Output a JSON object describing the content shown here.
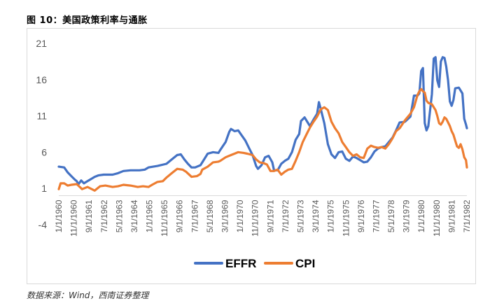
{
  "figure": {
    "title": "图 10：美国政策利率与通胀",
    "source": "数据来源：Wind，西南证券整理"
  },
  "chart_data": {
    "type": "line",
    "title": "",
    "xlabel": "",
    "ylabel": "",
    "ylim": [
      -4,
      21
    ],
    "yticks": [
      21,
      16,
      11,
      6,
      1,
      -4
    ],
    "xticks": [
      "1/1/1960",
      "11/1/1960",
      "9/1/1961",
      "7/1/1962",
      "5/1/1963",
      "3/1/1964",
      "1/1/1965",
      "11/1/1965",
      "9/1/1966",
      "7/1/1967",
      "5/1/1968",
      "3/1/1969",
      "1/1/1970",
      "11/1/1970",
      "9/1/1971",
      "7/1/1972",
      "5/1/1973",
      "3/1/1974",
      "1/1/1975",
      "11/1/1975",
      "9/1/1976",
      "7/1/1977",
      "5/1/1978",
      "3/1/1979",
      "1/1/1980",
      "11/1/1980",
      "9/1/1981",
      "7/1/1982"
    ],
    "xrange": [
      1960.0,
      1982.75
    ],
    "legend_position": "bottom",
    "series": [
      {
        "name": "EFFR",
        "color": "#4472c4",
        "points": [
          [
            1960.0,
            4.0
          ],
          [
            1960.3,
            3.9
          ],
          [
            1960.5,
            3.2
          ],
          [
            1960.7,
            2.7
          ],
          [
            1960.9,
            2.2
          ],
          [
            1961.0,
            2.0
          ],
          [
            1961.1,
            1.6
          ],
          [
            1961.25,
            2.1
          ],
          [
            1961.4,
            1.7
          ],
          [
            1961.6,
            2.0
          ],
          [
            1961.8,
            2.3
          ],
          [
            1962.0,
            2.6
          ],
          [
            1962.2,
            2.8
          ],
          [
            1962.5,
            2.9
          ],
          [
            1962.8,
            2.9
          ],
          [
            1963.0,
            2.9
          ],
          [
            1963.3,
            3.1
          ],
          [
            1963.6,
            3.4
          ],
          [
            1964.0,
            3.5
          ],
          [
            1964.5,
            3.5
          ],
          [
            1964.8,
            3.6
          ],
          [
            1965.0,
            3.9
          ],
          [
            1965.5,
            4.1
          ],
          [
            1966.0,
            4.4
          ],
          [
            1966.3,
            5.0
          ],
          [
            1966.6,
            5.6
          ],
          [
            1966.8,
            5.7
          ],
          [
            1967.0,
            5.0
          ],
          [
            1967.2,
            4.4
          ],
          [
            1967.4,
            3.9
          ],
          [
            1967.6,
            3.9
          ],
          [
            1967.9,
            4.2
          ],
          [
            1968.0,
            4.6
          ],
          [
            1968.3,
            5.8
          ],
          [
            1968.6,
            6.0
          ],
          [
            1968.9,
            5.9
          ],
          [
            1969.0,
            6.3
          ],
          [
            1969.3,
            7.4
          ],
          [
            1969.5,
            8.8
          ],
          [
            1969.6,
            9.2
          ],
          [
            1969.8,
            8.9
          ],
          [
            1970.0,
            9.0
          ],
          [
            1970.2,
            8.3
          ],
          [
            1970.4,
            7.6
          ],
          [
            1970.6,
            6.6
          ],
          [
            1970.8,
            5.6
          ],
          [
            1971.0,
            4.1
          ],
          [
            1971.1,
            3.7
          ],
          [
            1971.3,
            4.2
          ],
          [
            1971.5,
            5.3
          ],
          [
            1971.7,
            5.5
          ],
          [
            1971.9,
            4.6
          ],
          [
            1972.0,
            3.5
          ],
          [
            1972.2,
            3.5
          ],
          [
            1972.4,
            4.4
          ],
          [
            1972.6,
            4.8
          ],
          [
            1972.8,
            5.1
          ],
          [
            1973.0,
            6.0
          ],
          [
            1973.2,
            7.7
          ],
          [
            1973.4,
            8.5
          ],
          [
            1973.5,
            10.3
          ],
          [
            1973.7,
            10.8
          ],
          [
            1973.9,
            10.0
          ],
          [
            1974.0,
            9.6
          ],
          [
            1974.2,
            10.5
          ],
          [
            1974.4,
            11.3
          ],
          [
            1974.5,
            12.9
          ],
          [
            1974.6,
            12.0
          ],
          [
            1974.8,
            10.0
          ],
          [
            1975.0,
            7.1
          ],
          [
            1975.2,
            5.7
          ],
          [
            1975.4,
            5.2
          ],
          [
            1975.6,
            6.0
          ],
          [
            1975.8,
            6.1
          ],
          [
            1976.0,
            5.1
          ],
          [
            1976.2,
            4.8
          ],
          [
            1976.4,
            5.4
          ],
          [
            1976.6,
            5.2
          ],
          [
            1976.8,
            4.9
          ],
          [
            1977.0,
            4.6
          ],
          [
            1977.2,
            4.7
          ],
          [
            1977.4,
            5.3
          ],
          [
            1977.6,
            6.1
          ],
          [
            1977.8,
            6.5
          ],
          [
            1978.0,
            6.7
          ],
          [
            1978.2,
            6.8
          ],
          [
            1978.4,
            7.4
          ],
          [
            1978.6,
            8.0
          ],
          [
            1978.8,
            9.0
          ],
          [
            1979.0,
            10.1
          ],
          [
            1979.3,
            10.2
          ],
          [
            1979.6,
            10.9
          ],
          [
            1979.8,
            13.8
          ],
          [
            1980.0,
            13.8
          ],
          [
            1980.1,
            14.1
          ],
          [
            1980.2,
            17.2
          ],
          [
            1980.3,
            17.6
          ],
          [
            1980.4,
            10.0
          ],
          [
            1980.5,
            9.0
          ],
          [
            1980.6,
            9.6
          ],
          [
            1980.8,
            14.0
          ],
          [
            1980.9,
            18.9
          ],
          [
            1981.0,
            19.1
          ],
          [
            1981.1,
            15.9
          ],
          [
            1981.2,
            15.0
          ],
          [
            1981.3,
            18.5
          ],
          [
            1981.4,
            19.1
          ],
          [
            1981.5,
            19.0
          ],
          [
            1981.6,
            17.8
          ],
          [
            1981.7,
            15.9
          ],
          [
            1981.8,
            13.0
          ],
          [
            1981.9,
            12.4
          ],
          [
            1982.0,
            13.2
          ],
          [
            1982.1,
            14.8
          ],
          [
            1982.3,
            14.9
          ],
          [
            1982.5,
            14.1
          ],
          [
            1982.6,
            10.6
          ],
          [
            1982.7,
            9.8
          ],
          [
            1982.75,
            9.3
          ]
        ]
      },
      {
        "name": "CPI",
        "color": "#ed7d31",
        "points": [
          [
            1960.0,
            0.9
          ],
          [
            1960.1,
            1.7
          ],
          [
            1960.3,
            1.7
          ],
          [
            1960.5,
            1.4
          ],
          [
            1960.7,
            1.5
          ],
          [
            1961.0,
            1.6
          ],
          [
            1961.3,
            0.9
          ],
          [
            1961.6,
            1.2
          ],
          [
            1962.0,
            0.7
          ],
          [
            1962.3,
            1.3
          ],
          [
            1962.6,
            1.4
          ],
          [
            1963.0,
            1.2
          ],
          [
            1963.3,
            1.3
          ],
          [
            1963.6,
            1.5
          ],
          [
            1964.0,
            1.4
          ],
          [
            1964.4,
            1.2
          ],
          [
            1964.7,
            1.3
          ],
          [
            1965.0,
            1.2
          ],
          [
            1965.2,
            1.5
          ],
          [
            1965.5,
            1.9
          ],
          [
            1965.8,
            2.0
          ],
          [
            1966.0,
            2.5
          ],
          [
            1966.3,
            3.1
          ],
          [
            1966.6,
            3.7
          ],
          [
            1966.9,
            3.6
          ],
          [
            1967.1,
            3.3
          ],
          [
            1967.4,
            2.6
          ],
          [
            1967.7,
            2.7
          ],
          [
            1967.9,
            3.0
          ],
          [
            1968.0,
            3.6
          ],
          [
            1968.3,
            4.0
          ],
          [
            1968.6,
            4.6
          ],
          [
            1968.9,
            4.7
          ],
          [
            1969.0,
            4.8
          ],
          [
            1969.3,
            5.3
          ],
          [
            1969.6,
            5.6
          ],
          [
            1969.8,
            5.8
          ],
          [
            1970.0,
            6.0
          ],
          [
            1970.3,
            5.9
          ],
          [
            1970.5,
            5.8
          ],
          [
            1970.8,
            5.6
          ],
          [
            1971.0,
            5.0
          ],
          [
            1971.2,
            4.6
          ],
          [
            1971.4,
            4.5
          ],
          [
            1971.6,
            4.3
          ],
          [
            1971.8,
            3.4
          ],
          [
            1972.0,
            3.4
          ],
          [
            1972.2,
            3.6
          ],
          [
            1972.4,
            2.9
          ],
          [
            1972.6,
            3.3
          ],
          [
            1972.8,
            3.6
          ],
          [
            1973.0,
            3.7
          ],
          [
            1973.2,
            4.8
          ],
          [
            1973.4,
            6.0
          ],
          [
            1973.6,
            7.4
          ],
          [
            1973.8,
            8.4
          ],
          [
            1974.0,
            9.4
          ],
          [
            1974.2,
            10.2
          ],
          [
            1974.4,
            10.9
          ],
          [
            1974.6,
            11.9
          ],
          [
            1974.8,
            12.2
          ],
          [
            1975.0,
            11.8
          ],
          [
            1975.2,
            10.2
          ],
          [
            1975.4,
            9.3
          ],
          [
            1975.6,
            8.6
          ],
          [
            1975.8,
            7.4
          ],
          [
            1976.0,
            6.7
          ],
          [
            1976.2,
            6.0
          ],
          [
            1976.4,
            5.5
          ],
          [
            1976.6,
            5.7
          ],
          [
            1976.8,
            5.3
          ],
          [
            1977.0,
            5.2
          ],
          [
            1977.2,
            6.5
          ],
          [
            1977.4,
            6.9
          ],
          [
            1977.6,
            6.7
          ],
          [
            1977.8,
            6.6
          ],
          [
            1978.0,
            6.7
          ],
          [
            1978.2,
            6.5
          ],
          [
            1978.4,
            7.1
          ],
          [
            1978.6,
            7.9
          ],
          [
            1978.8,
            8.9
          ],
          [
            1979.0,
            9.3
          ],
          [
            1979.3,
            10.4
          ],
          [
            1979.6,
            11.3
          ],
          [
            1979.8,
            12.2
          ],
          [
            1980.0,
            13.9
          ],
          [
            1980.1,
            14.4
          ],
          [
            1980.2,
            14.7
          ],
          [
            1980.3,
            14.4
          ],
          [
            1980.4,
            14.2
          ],
          [
            1980.5,
            13.1
          ],
          [
            1980.6,
            12.8
          ],
          [
            1980.8,
            12.6
          ],
          [
            1981.0,
            11.8
          ],
          [
            1981.1,
            11.0
          ],
          [
            1981.2,
            10.0
          ],
          [
            1981.3,
            9.8
          ],
          [
            1981.4,
            10.2
          ],
          [
            1981.5,
            10.8
          ],
          [
            1981.6,
            10.6
          ],
          [
            1981.7,
            10.1
          ],
          [
            1981.8,
            9.6
          ],
          [
            1981.9,
            8.9
          ],
          [
            1982.0,
            8.4
          ],
          [
            1982.1,
            7.6
          ],
          [
            1982.2,
            6.8
          ],
          [
            1982.3,
            6.6
          ],
          [
            1982.4,
            7.1
          ],
          [
            1982.5,
            6.4
          ],
          [
            1982.6,
            5.3
          ],
          [
            1982.7,
            4.9
          ],
          [
            1982.75,
            3.9
          ]
        ]
      }
    ]
  }
}
